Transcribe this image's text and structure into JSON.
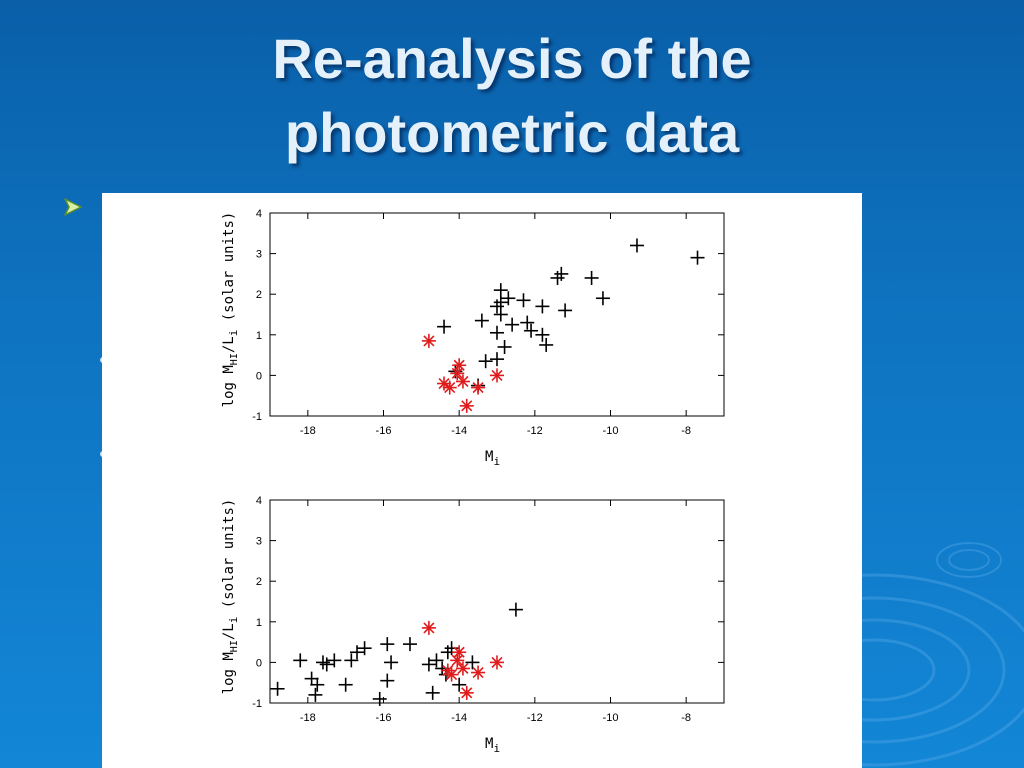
{
  "slide": {
    "title_line1": "Re-analysis of the",
    "title_line2": "photometric data",
    "bullet_icon": "arrow-bullet-icon"
  },
  "chart_data": [
    {
      "type": "scatter",
      "title": "",
      "xlabel": "M",
      "xlabel_sub": "i",
      "ylabel": "log M",
      "ylabel_sub1": "HI",
      "ylabel_mid": "/L",
      "ylabel_sub2": "i",
      "ylabel_tail": " (solar units)",
      "xlim": [
        -19,
        -7
      ],
      "ylim": [
        -1,
        4
      ],
      "xticks": [
        -18,
        -16,
        -14,
        -12,
        -10,
        -8
      ],
      "yticks": [
        -1,
        0,
        1,
        2,
        3,
        4
      ],
      "grid": false,
      "series": [
        {
          "marker": "plus",
          "color": "#000000",
          "points": [
            [
              -9.3,
              3.2
            ],
            [
              -7.7,
              2.9
            ],
            [
              -11.3,
              2.5
            ],
            [
              -11.4,
              2.4
            ],
            [
              -10.5,
              2.4
            ],
            [
              -10.2,
              1.9
            ],
            [
              -11.2,
              1.6
            ],
            [
              -11.8,
              1.7
            ],
            [
              -12.9,
              2.1
            ],
            [
              -12.7,
              1.9
            ],
            [
              -12.9,
              1.8
            ],
            [
              -12.3,
              1.85
            ],
            [
              -13.0,
              1.7
            ],
            [
              -12.9,
              1.5
            ],
            [
              -12.6,
              1.25
            ],
            [
              -12.2,
              1.3
            ],
            [
              -12.1,
              1.1
            ],
            [
              -13.0,
              1.05
            ],
            [
              -11.8,
              1.0
            ],
            [
              -11.7,
              0.75
            ],
            [
              -12.8,
              0.7
            ],
            [
              -13.4,
              1.35
            ],
            [
              -14.4,
              1.2
            ],
            [
              -13.0,
              0.4
            ],
            [
              -13.3,
              0.35
            ],
            [
              -14.1,
              0.1
            ],
            [
              -13.5,
              -0.25
            ]
          ]
        },
        {
          "marker": "star",
          "color": "#e01b1b",
          "points": [
            [
              -14.8,
              0.85
            ],
            [
              -14.0,
              0.25
            ],
            [
              -14.05,
              0.05
            ],
            [
              -13.9,
              -0.15
            ],
            [
              -14.4,
              -0.2
            ],
            [
              -14.25,
              -0.3
            ],
            [
              -13.5,
              -0.3
            ],
            [
              -13.0,
              0.0
            ],
            [
              -13.8,
              -0.75
            ]
          ]
        }
      ]
    },
    {
      "type": "scatter",
      "title": "",
      "xlabel": "M",
      "xlabel_sub": "i",
      "ylabel": "log M",
      "ylabel_sub1": "HI",
      "ylabel_mid": "/L",
      "ylabel_sub2": "i",
      "ylabel_tail": " (solar units)",
      "xlim": [
        -19,
        -7
      ],
      "ylim": [
        -1,
        4
      ],
      "xticks": [
        -18,
        -16,
        -14,
        -12,
        -10,
        -8
      ],
      "yticks": [
        -1,
        0,
        1,
        2,
        3,
        4
      ],
      "grid": false,
      "series": [
        {
          "marker": "plus",
          "color": "#000000",
          "points": [
            [
              -12.5,
              1.3
            ],
            [
              -15.3,
              0.45
            ],
            [
              -15.9,
              0.45
            ],
            [
              -16.5,
              0.35
            ],
            [
              -16.7,
              0.25
            ],
            [
              -16.85,
              0.05
            ],
            [
              -17.3,
              0.05
            ],
            [
              -17.5,
              -0.05
            ],
            [
              -17.6,
              0.0
            ],
            [
              -18.2,
              0.05
            ],
            [
              -17.9,
              -0.4
            ],
            [
              -17.75,
              -0.55
            ],
            [
              -17.8,
              -0.8
            ],
            [
              -18.8,
              -0.65
            ],
            [
              -17.0,
              -0.55
            ],
            [
              -16.1,
              -0.9
            ],
            [
              -15.9,
              -0.45
            ],
            [
              -15.8,
              0.0
            ],
            [
              -14.8,
              -0.05
            ],
            [
              -14.6,
              0.05
            ],
            [
              -14.7,
              -0.75
            ],
            [
              -14.3,
              0.25
            ],
            [
              -14.2,
              0.35
            ],
            [
              -14.45,
              -0.15
            ],
            [
              -14.35,
              -0.3
            ],
            [
              -14.0,
              -0.55
            ],
            [
              -13.65,
              0.0
            ]
          ]
        },
        {
          "marker": "star",
          "color": "#e01b1b",
          "points": [
            [
              -14.8,
              0.85
            ],
            [
              -14.0,
              0.25
            ],
            [
              -14.05,
              0.05
            ],
            [
              -13.9,
              -0.15
            ],
            [
              -14.3,
              -0.2
            ],
            [
              -14.2,
              -0.3
            ],
            [
              -13.5,
              -0.25
            ],
            [
              -13.0,
              0.0
            ],
            [
              -13.8,
              -0.75
            ]
          ]
        }
      ]
    }
  ]
}
